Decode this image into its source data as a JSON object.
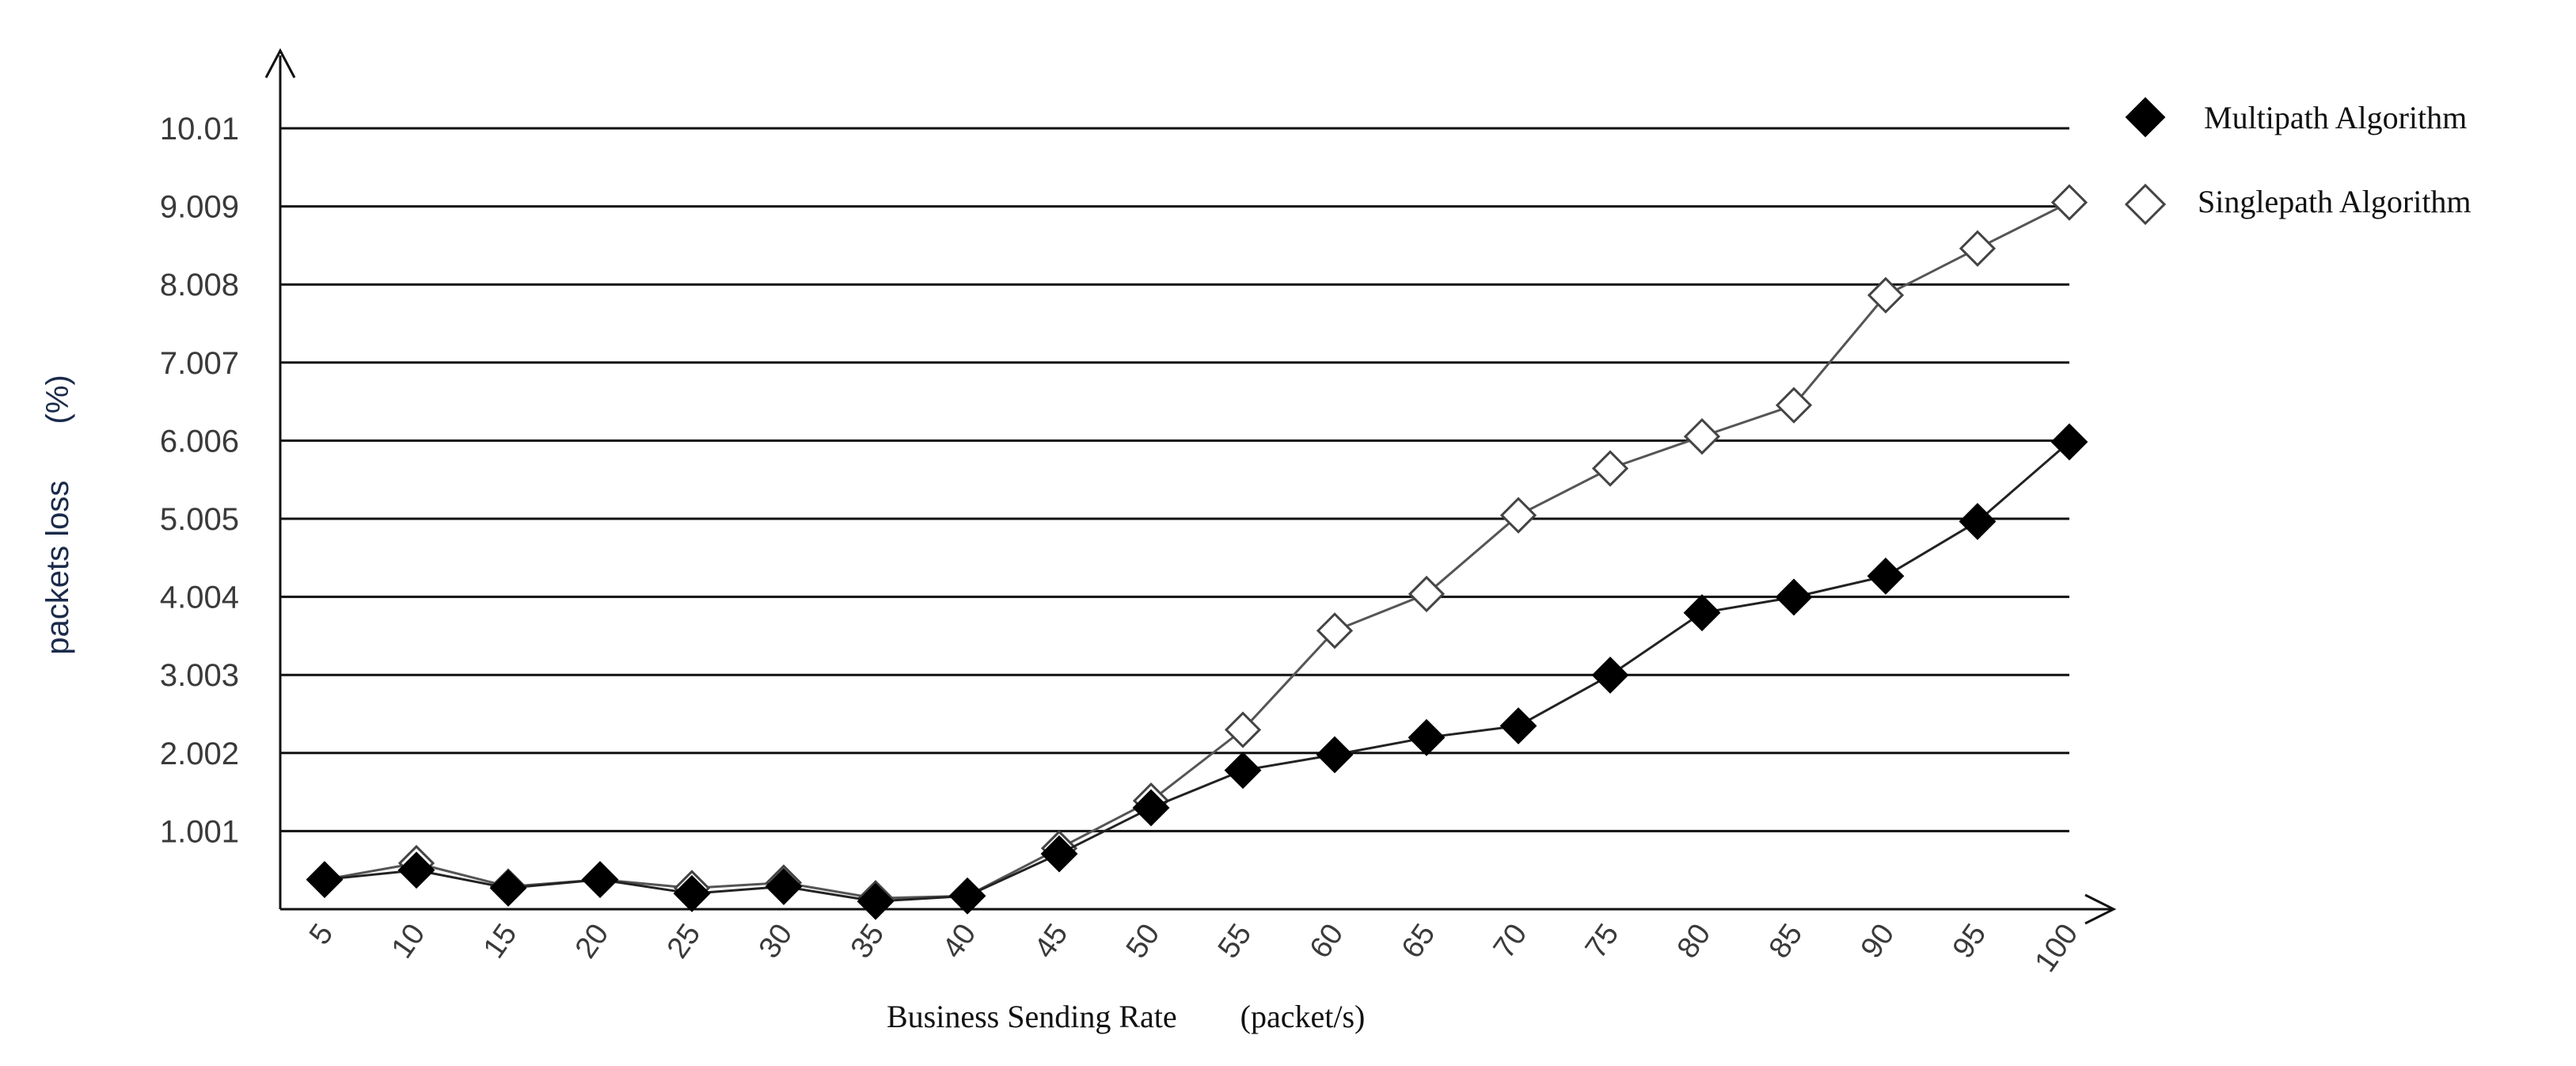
{
  "chart_data": {
    "type": "line",
    "title": "",
    "xlabel": "Business Sending Rate",
    "xlabel_unit": "(packet/s)",
    "ylabel": "packets loss",
    "ylabel_unit": "(%)",
    "categories": [
      "5",
      "10",
      "15",
      "20",
      "25",
      "30",
      "35",
      "40",
      "45",
      "50",
      "55",
      "60",
      "65",
      "70",
      "75",
      "80",
      "85",
      "90",
      "95",
      "100"
    ],
    "y_ticks": [
      "1.001",
      "2.002",
      "3.003",
      "4.004",
      "5.005",
      "6.006",
      "7.007",
      "8.008",
      "9.009",
      "10.01"
    ],
    "ylim": [
      0,
      10.01
    ],
    "grid": "horizontal",
    "legend_position": "top-right",
    "series": [
      {
        "name": "Multipath Algorithm",
        "marker": "filled-diamond",
        "color": "#000000",
        "values": [
          0.38,
          0.5,
          0.27,
          0.38,
          0.2,
          0.29,
          0.1,
          0.17,
          0.71,
          1.3,
          1.78,
          1.98,
          2.2,
          2.35,
          3.0,
          3.8,
          4.0,
          4.27,
          4.97,
          5.99
        ]
      },
      {
        "name": "Singlepath Algorithm",
        "marker": "hollow-diamond",
        "color": "#555555",
        "values": [
          0.38,
          0.59,
          0.29,
          0.38,
          0.27,
          0.34,
          0.14,
          0.17,
          0.78,
          1.39,
          2.3,
          3.57,
          4.04,
          5.05,
          5.65,
          6.06,
          6.46,
          7.87,
          8.47,
          9.06
        ]
      }
    ]
  }
}
